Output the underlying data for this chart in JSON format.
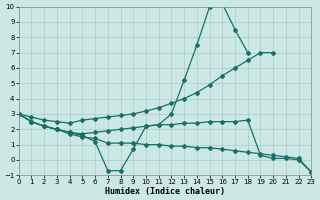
{
  "bg_color": "#cce8e4",
  "grid_color": "#aacccc",
  "line_color": "#1a7068",
  "xlabel": "Humidex (Indice chaleur)",
  "xlim": [
    0,
    23
  ],
  "ylim": [
    -1,
    10
  ],
  "xticks": [
    0,
    1,
    2,
    3,
    4,
    5,
    6,
    7,
    8,
    9,
    10,
    11,
    12,
    13,
    14,
    15,
    16,
    17,
    18,
    19,
    20,
    21,
    22,
    23
  ],
  "yticks": [
    -1,
    0,
    1,
    2,
    3,
    4,
    5,
    6,
    7,
    8,
    9,
    10
  ],
  "line1_x": [
    0,
    1,
    2,
    3,
    4,
    5,
    6,
    7,
    8,
    9,
    10,
    11,
    12,
    13,
    14,
    15,
    16,
    17,
    18
  ],
  "line1_y": [
    3,
    2.5,
    2.2,
    2.0,
    1.8,
    1.6,
    1.2,
    -0.7,
    -0.7,
    0.7,
    2.2,
    2.3,
    3.0,
    5.2,
    7.5,
    10.0,
    10.2,
    8.5,
    7.0
  ],
  "line2_x": [
    0,
    1,
    2,
    3,
    4,
    5,
    6,
    7,
    8,
    9,
    10,
    11,
    12,
    13,
    14,
    15,
    16,
    17,
    18,
    19,
    20
  ],
  "line2_y": [
    3,
    2.8,
    2.6,
    2.5,
    2.4,
    2.6,
    2.7,
    2.8,
    2.9,
    3.0,
    3.2,
    3.4,
    3.7,
    4.0,
    4.4,
    4.9,
    5.5,
    6.0,
    6.5,
    7.0,
    7.0
  ],
  "line3_x": [
    0,
    1,
    2,
    3,
    4,
    5,
    6,
    7,
    8,
    9,
    10,
    11,
    12,
    13,
    14,
    15,
    16,
    17,
    18,
    19,
    20,
    21,
    22,
    23
  ],
  "line3_y": [
    3,
    2.5,
    2.2,
    2.0,
    1.8,
    1.7,
    1.8,
    1.9,
    2.0,
    2.1,
    2.2,
    2.3,
    2.3,
    2.4,
    2.4,
    2.5,
    2.5,
    2.5,
    2.6,
    0.3,
    0.1,
    0.1,
    0.0,
    -0.8
  ],
  "line4_x": [
    0,
    1,
    2,
    3,
    4,
    5,
    6,
    7,
    8,
    9,
    10,
    11,
    12,
    13,
    14,
    15,
    16,
    17,
    18,
    19,
    20,
    21,
    22,
    23
  ],
  "line4_y": [
    3,
    2.5,
    2.2,
    2.0,
    1.7,
    1.5,
    1.4,
    1.1,
    1.1,
    1.1,
    1.0,
    1.0,
    0.9,
    0.9,
    0.8,
    0.8,
    0.7,
    0.6,
    0.5,
    0.4,
    0.3,
    0.2,
    0.1,
    -0.8
  ]
}
